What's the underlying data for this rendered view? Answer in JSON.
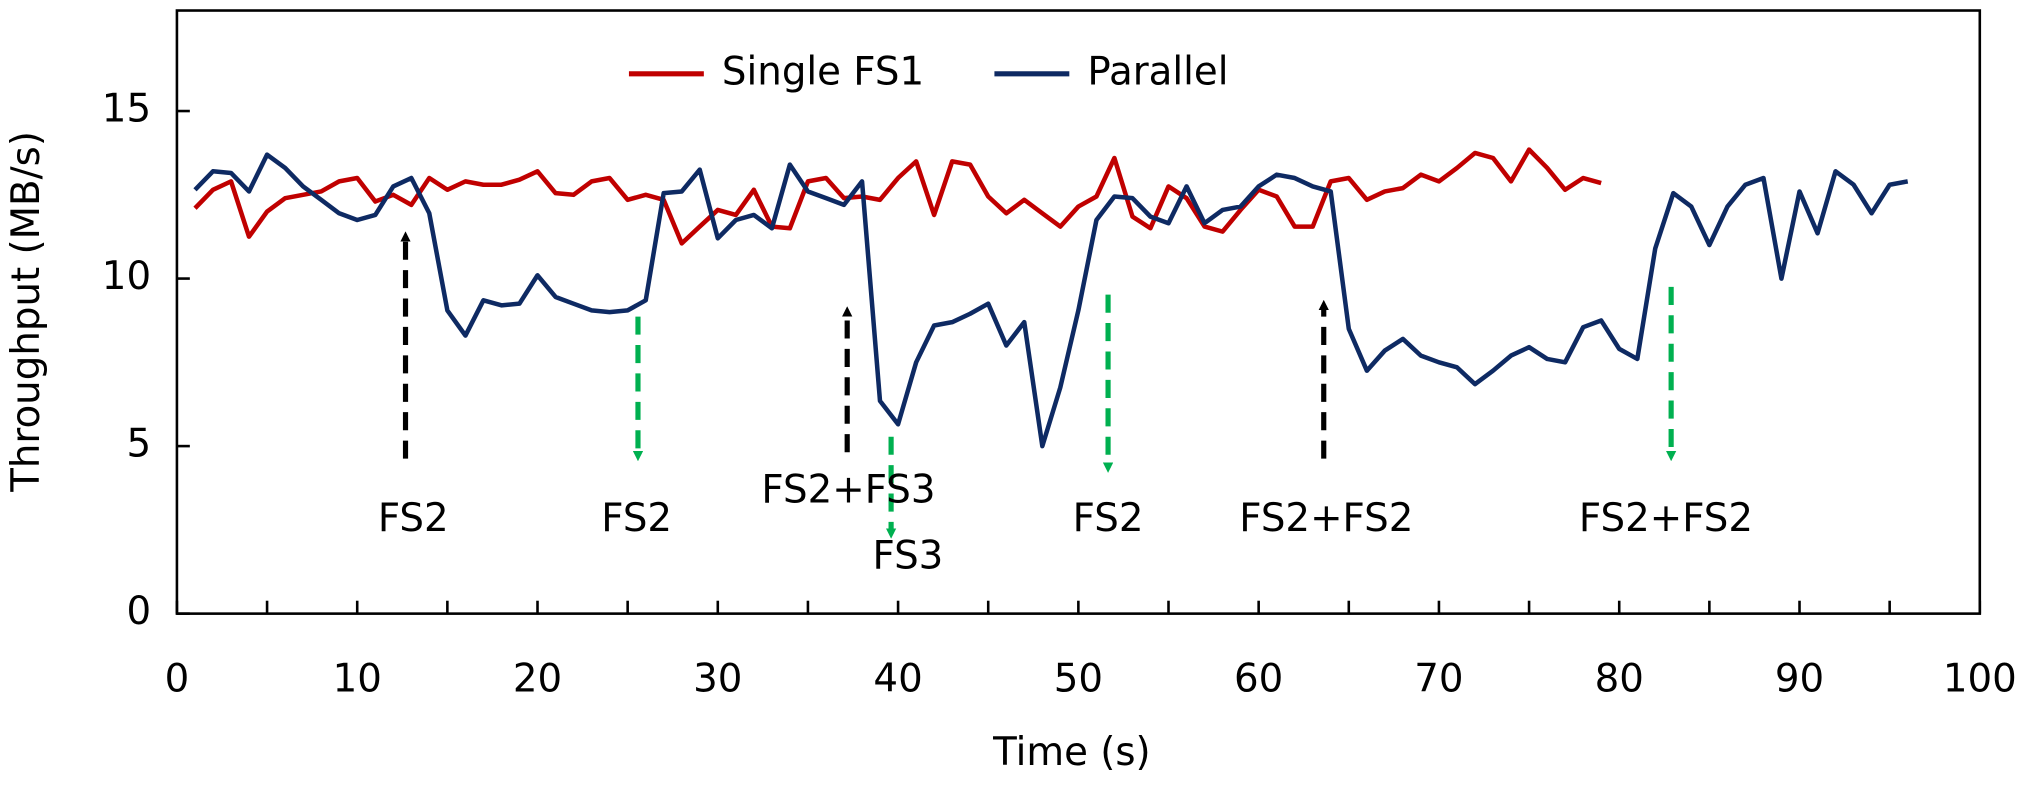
{
  "chart_data": {
    "type": "line",
    "xlabel": "Time (s)",
    "ylabel": "Throughput (MB/s)",
    "xlim": [
      0,
      100
    ],
    "xticks": [
      0,
      10,
      20,
      30,
      40,
      50,
      60,
      70,
      80,
      90,
      100
    ],
    "ylim": [
      0,
      18
    ],
    "yticks": [
      0,
      5,
      10,
      15
    ],
    "legend": "top",
    "series": [
      {
        "name": "Single FS1",
        "color": "#c00000",
        "x": [
          1,
          2,
          3,
          4,
          5,
          6,
          7,
          8,
          9,
          10,
          11,
          12,
          13,
          14,
          15,
          16,
          17,
          18,
          19,
          20,
          21,
          22,
          23,
          24,
          25,
          26,
          27,
          28,
          29,
          30,
          31,
          32,
          33,
          34,
          35,
          36,
          37,
          38,
          39,
          40,
          41,
          42,
          43,
          44,
          45,
          46,
          47,
          48,
          49,
          50,
          51,
          52,
          53,
          54,
          55,
          56,
          57,
          58,
          59,
          60,
          61,
          62,
          63,
          64,
          65,
          66,
          67,
          68,
          69,
          70,
          71,
          72,
          73,
          74,
          75,
          76,
          77,
          78,
          79
        ],
        "values": [
          12.1,
          12.65,
          12.9,
          11.25,
          12.0,
          12.4,
          12.5,
          12.6,
          12.9,
          13.0,
          12.3,
          12.5,
          12.2,
          13.0,
          12.65,
          12.9,
          12.8,
          12.8,
          12.95,
          13.2,
          12.55,
          12.5,
          12.9,
          13.0,
          12.35,
          12.5,
          12.35,
          11.05,
          11.55,
          12.05,
          11.9,
          12.65,
          11.55,
          11.5,
          12.9,
          13.0,
          12.4,
          12.45,
          12.35,
          13.0,
          13.5,
          11.9,
          13.5,
          13.4,
          12.45,
          11.95,
          12.35,
          11.95,
          11.55,
          12.15,
          12.45,
          13.6,
          11.85,
          11.5,
          12.75,
          12.4,
          11.55,
          11.4,
          12.05,
          12.65,
          12.45,
          11.55,
          11.55,
          12.9,
          13.0,
          12.35,
          12.6,
          12.7,
          13.1,
          12.9,
          13.3,
          13.75,
          13.6,
          12.9,
          13.85,
          13.3,
          12.65,
          13.0,
          12.85
        ]
      },
      {
        "name": "Parallel",
        "color": "#0e2a63",
        "x": [
          1,
          2,
          3,
          4,
          5,
          6,
          7,
          8,
          9,
          10,
          11,
          12,
          13,
          14,
          15,
          16,
          17,
          18,
          19,
          20,
          21,
          22,
          23,
          24,
          25,
          26,
          27,
          28,
          29,
          30,
          31,
          32,
          33,
          34,
          35,
          36,
          37,
          38,
          39,
          40,
          41,
          42,
          43,
          44,
          45,
          46,
          47,
          48,
          49,
          50,
          51,
          52,
          53,
          54,
          55,
          56,
          57,
          58,
          59,
          60,
          61,
          62,
          63,
          64,
          65,
          66,
          67,
          68,
          69,
          70,
          71,
          72,
          73,
          74,
          75,
          76,
          77,
          78,
          79,
          80,
          81,
          82,
          83,
          84,
          85,
          86,
          87,
          88,
          89,
          90,
          91,
          92,
          93,
          94,
          95,
          96
        ],
        "values": [
          12.65,
          13.2,
          13.15,
          12.6,
          13.7,
          13.3,
          12.75,
          12.35,
          11.95,
          11.75,
          11.9,
          12.75,
          13.0,
          11.95,
          9.05,
          8.3,
          9.35,
          9.2,
          9.25,
          10.1,
          9.45,
          9.25,
          9.05,
          9.0,
          9.05,
          9.35,
          12.55,
          12.6,
          13.25,
          11.2,
          11.75,
          11.9,
          11.5,
          13.4,
          12.6,
          12.4,
          12.2,
          12.9,
          6.35,
          5.65,
          7.5,
          8.6,
          8.7,
          8.95,
          9.25,
          8.0,
          8.7,
          5.0,
          6.75,
          9.05,
          11.75,
          12.45,
          12.4,
          11.85,
          11.65,
          12.75,
          11.65,
          12.05,
          12.15,
          12.75,
          13.1,
          13.0,
          12.75,
          12.6,
          8.5,
          7.25,
          7.85,
          8.2,
          7.7,
          7.5,
          7.35,
          6.85,
          7.25,
          7.7,
          7.95,
          7.6,
          7.5,
          8.55,
          8.75,
          7.9,
          7.6,
          10.9,
          12.55,
          12.15,
          11.0,
          12.15,
          12.8,
          13.0,
          10.0,
          12.6,
          11.35,
          13.2,
          12.8,
          11.95,
          12.8,
          12.9
        ]
      }
    ],
    "annotations": [
      "FS2",
      "FS2",
      "FS2+FS3",
      "FS3",
      "FS2",
      "FS2+FS2",
      "FS2+FS2"
    ]
  }
}
